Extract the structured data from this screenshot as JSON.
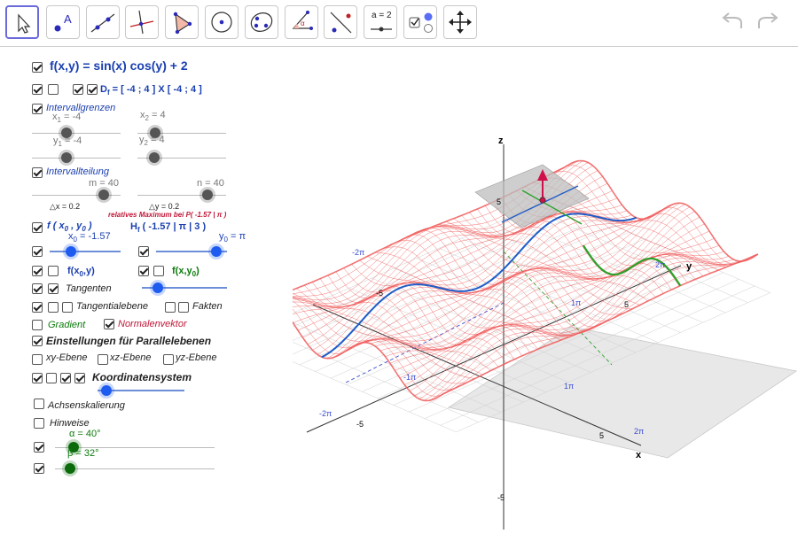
{
  "toolbar": {
    "tools": [
      "move-tool",
      "point-tool",
      "line-tool",
      "perpendicular-tool",
      "polygon-tool",
      "circle-tool",
      "conic-tool",
      "angle-tool",
      "reflect-tool",
      "slider-tool",
      "checkbox-tool",
      "move-graphics-tool"
    ],
    "slider_tool_label": "a = 2"
  },
  "panel": {
    "function": "f(x,y) = sin(x) cos(y) + 2",
    "domain_prefix": "D",
    "domain_sub": "f",
    "domain_rest": " = [ -4 ; 4 ] X [ -4 ; 4 ]",
    "intervallgrenzen": "Intervallgrenzen",
    "x1": "x",
    "x1_sub": "1",
    "x1_val": " = -4",
    "x2": "x",
    "x2_sub": "2",
    "x2_val": " = 4",
    "y1": "y",
    "y1_sub": "1",
    "y1_val": " = -4",
    "y2": "y",
    "y2_sub": "2",
    "y2_val": " = 4",
    "intervallteilung": "Intervallteilung",
    "m": "m = 40",
    "n": "n = 40",
    "dx": "△x = 0.2",
    "dy": "△y = 0.2",
    "f_point_label": "f ( x",
    "f_point_sub0": "0",
    "f_point_mid": " , y",
    "f_point_sub1": "0",
    "f_point_end": " )",
    "rel_max": "relatives Maximum bei P( -1.57 | π )",
    "hf_label": "H",
    "hf_sub": "f",
    "hf_rest": " ( -1.57 | π | 3 )",
    "x0": "x",
    "x0_sub": "0",
    "x0_val": " = -1.57",
    "y0": "y",
    "y0_sub": "0",
    "y0_val": " = π",
    "fx0y": "f(x",
    "fx0y_sub": "0",
    "fx0y_end": ",y)",
    "fxy0": "f(x,y",
    "fxy0_sub": "0",
    "fxy0_end": ")",
    "tangenten": "Tangenten",
    "tangentialebene": "Tangentialebene",
    "fakten": "Fakten",
    "gradient": "Gradient",
    "normalenvektor": "Normalenvektor",
    "einstellungen": "Einstellungen für Parallelebenen",
    "xy": "xy-Ebene",
    "xz": "xz-Ebene",
    "yz": "yz-Ebene",
    "koordinatensystem": "Koordinatensystem",
    "achsenskalierung": "Achsenskalierung",
    "hinweise": "Hinweise",
    "alpha": "α = 40°",
    "beta": "β = 32°"
  },
  "sliders": {
    "x1": -4,
    "x2": 4,
    "y1": -4,
    "y2": 4,
    "m": 40,
    "n": 40,
    "x0": -1.57,
    "y0": 3.14159,
    "alpha": 40,
    "beta": 32
  },
  "graph": {
    "axis_z": "z",
    "axis_y": "y",
    "axis_x": "x",
    "t5": "5",
    "tm5": "-5",
    "t2pi": "2π",
    "tm2pi": "-2π",
    "t1pi": "1π",
    "tm1pi": "-1π",
    "surface_color": "#f05a5a",
    "curve_blue": "#1e5cc8",
    "curve_green": "#2aa22a",
    "normal_color": "#d0104a"
  }
}
